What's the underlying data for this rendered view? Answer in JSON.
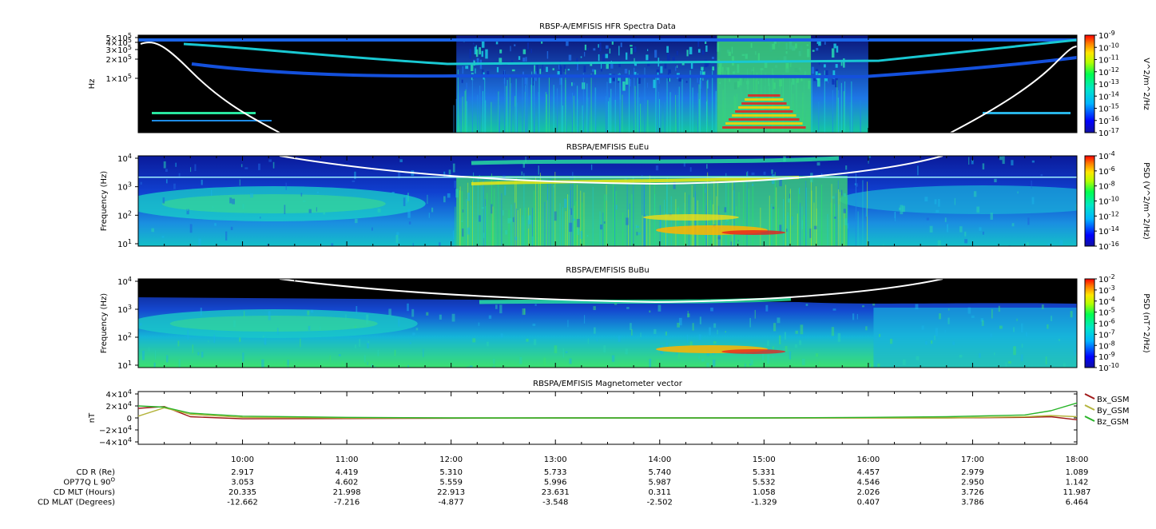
{
  "panels": [
    {
      "id": "hfr",
      "title": "RBSP-A/EMFISIS  HFR Spectra Data",
      "ylabel": "Hz",
      "yticks": [
        {
          "label": "5×10",
          "exp": "5",
          "value": 500000
        },
        {
          "label": "4×10",
          "exp": "5",
          "value": 400000
        },
        {
          "label": "3×10",
          "exp": "5",
          "value": 300000
        },
        {
          "label": "2×10",
          "exp": "5",
          "value": 200000
        },
        {
          "label": "1×10",
          "exp": "5",
          "value": 100000
        }
      ],
      "colorbar": {
        "label": "V^2/m^2/Hz",
        "ticks": [
          {
            "base": "10",
            "exp": "-9"
          },
          {
            "base": "10",
            "exp": "-10"
          },
          {
            "base": "10",
            "exp": "-11"
          },
          {
            "base": "10",
            "exp": "-12"
          },
          {
            "base": "10",
            "exp": "-13"
          },
          {
            "base": "10",
            "exp": "-14"
          },
          {
            "base": "10",
            "exp": "-15"
          },
          {
            "base": "10",
            "exp": "-16"
          },
          {
            "base": "10",
            "exp": "-17"
          }
        ]
      }
    },
    {
      "id": "eueu",
      "title": "RBSPA/EMFISIS  EuEu",
      "ylabel": "Frequency (Hz)",
      "yticks": [
        {
          "base": "10",
          "exp": "4"
        },
        {
          "base": "10",
          "exp": "3"
        },
        {
          "base": "10",
          "exp": "2"
        },
        {
          "base": "10",
          "exp": "1"
        }
      ],
      "colorbar": {
        "label": "PSD (V^2/m^2/Hz)",
        "ticks": [
          {
            "base": "10",
            "exp": "-4"
          },
          {
            "base": "10",
            "exp": "-6"
          },
          {
            "base": "10",
            "exp": "-8"
          },
          {
            "base": "10",
            "exp": "-10"
          },
          {
            "base": "10",
            "exp": "-12"
          },
          {
            "base": "10",
            "exp": "-14"
          },
          {
            "base": "10",
            "exp": "-16"
          }
        ]
      }
    },
    {
      "id": "bubu",
      "title": "RBSPA/EMFISIS  BuBu",
      "ylabel": "Frequency (Hz)",
      "yticks": [
        {
          "base": "10",
          "exp": "4"
        },
        {
          "base": "10",
          "exp": "3"
        },
        {
          "base": "10",
          "exp": "2"
        },
        {
          "base": "10",
          "exp": "1"
        }
      ],
      "colorbar": {
        "label": "PSD (nT^2/Hz)",
        "ticks": [
          {
            "base": "10",
            "exp": "-2"
          },
          {
            "base": "10",
            "exp": "-3"
          },
          {
            "base": "10",
            "exp": "-4"
          },
          {
            "base": "10",
            "exp": "-5"
          },
          {
            "base": "10",
            "exp": "-6"
          },
          {
            "base": "10",
            "exp": "-7"
          },
          {
            "base": "10",
            "exp": "-8"
          },
          {
            "base": "10",
            "exp": "-9"
          },
          {
            "base": "10",
            "exp": "-10"
          }
        ]
      }
    }
  ],
  "colors": {
    "background": "#000000",
    "spectrum_low": "#0a14a8",
    "spectrum_mid": "#19d2d2",
    "spectrum_high": "#e81e1e",
    "plasma_line": "#ffffff",
    "bx": "#a01818",
    "by": "#b4b43c",
    "bz": "#28b428"
  },
  "mag": {
    "title": "RBSPA/EMFISIS  Magnetometer vector",
    "ylabel": "nT",
    "yticks": [
      {
        "sign": "",
        "mant": "4×10",
        "exp": "4",
        "value": 40000
      },
      {
        "sign": "",
        "mant": "2×10",
        "exp": "4",
        "value": 20000
      },
      {
        "sign": "",
        "mant": "0",
        "exp": "",
        "value": 0
      },
      {
        "sign": "−",
        "mant": "2×10",
        "exp": "4",
        "value": -20000
      },
      {
        "sign": "−",
        "mant": "4×10",
        "exp": "4",
        "value": -40000
      }
    ],
    "legend": [
      "Bx_GSM",
      "By_GSM",
      "Bz_GSM"
    ]
  },
  "chart_data": {
    "type": "line",
    "title": "RBSPA/EMFISIS  Magnetometer vector",
    "ylabel": "nT",
    "ylim": [
      -40000,
      40000
    ],
    "xlim": [
      "09:00",
      "18:00"
    ],
    "x": [
      "09:00",
      "09:15",
      "09:30",
      "10:00",
      "11:00",
      "12:00",
      "13:00",
      "14:00",
      "15:00",
      "16:00",
      "16:45",
      "17:30",
      "17:45",
      "18:00"
    ],
    "series": [
      {
        "name": "Bx_GSM",
        "values": [
          16000,
          19000,
          2000,
          -1500,
          -1000,
          -500,
          0,
          0,
          0,
          0,
          0,
          1000,
          2000,
          -3000
        ]
      },
      {
        "name": "By_GSM",
        "values": [
          3000,
          17000,
          6000,
          1000,
          0,
          0,
          0,
          0,
          0,
          0,
          0,
          2000,
          4000,
          2000
        ]
      },
      {
        "name": "Bz_GSM",
        "values": [
          20000,
          18000,
          8000,
          3000,
          1000,
          0,
          0,
          0,
          0,
          1000,
          2000,
          5000,
          12000,
          25000
        ]
      }
    ],
    "legend": "right"
  },
  "xaxis": {
    "ticks": [
      "10:00",
      "11:00",
      "12:00",
      "13:00",
      "14:00",
      "15:00",
      "16:00",
      "17:00",
      "18:00"
    ]
  },
  "ephemeris": [
    {
      "label": "CD R (Re)",
      "values": [
        "2.917",
        "4.419",
        "5.310",
        "5.733",
        "5.740",
        "5.331",
        "4.457",
        "2.979",
        "1.089"
      ]
    },
    {
      "label": "OP77Q L 90",
      "sup": "O",
      "values": [
        "3.053",
        "4.602",
        "5.559",
        "5.996",
        "5.987",
        "5.532",
        "4.546",
        "2.950",
        "1.142"
      ]
    },
    {
      "label": "CD MLT (Hours)",
      "values": [
        "20.335",
        "21.998",
        "22.913",
        "23.631",
        "0.311",
        "1.058",
        "2.026",
        "3.726",
        "11.987"
      ]
    },
    {
      "label": "CD MLAT (Degrees)",
      "values": [
        "-12.662",
        "-7.216",
        "-4.877",
        "-3.548",
        "-2.502",
        "-1.329",
        "0.407",
        "3.786",
        "6.464"
      ]
    }
  ]
}
